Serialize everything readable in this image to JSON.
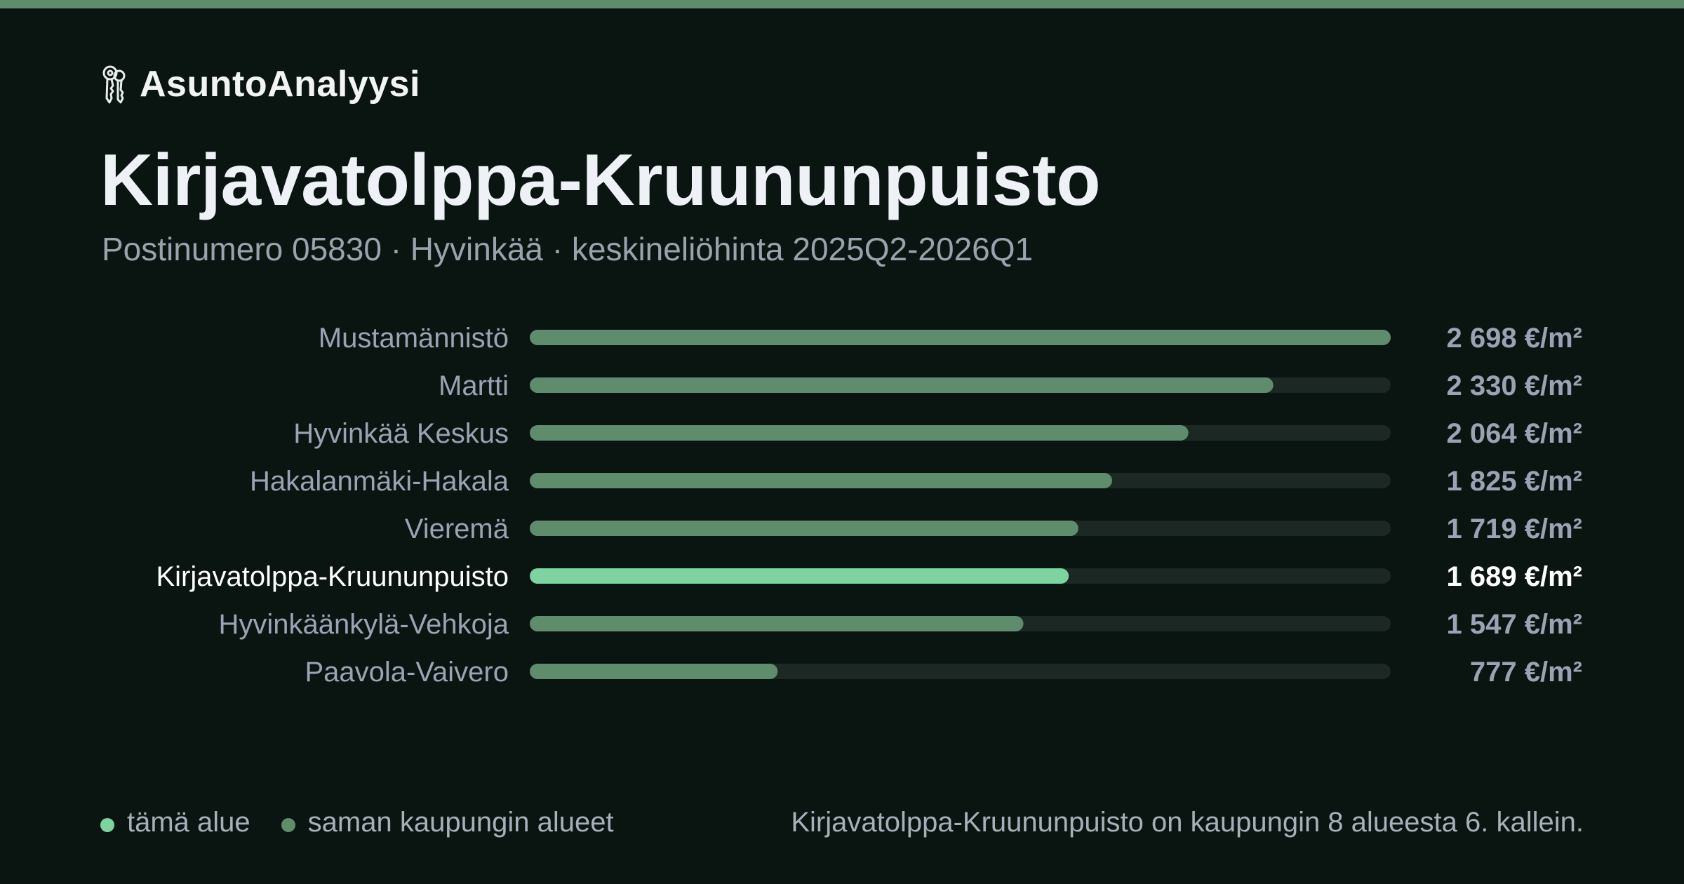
{
  "brand": {
    "name": "AsuntoAnalyysi",
    "icon": "keys-icon"
  },
  "header": {
    "title": "Kirjavatolppa-Kruununpuisto",
    "subtitle": "Postinumero 05830 · Hyvinkää · keskineliöhinta 2025Q2-2026Q1"
  },
  "colors": {
    "accent_bar": "#5e8c6c",
    "highlight": "#7ed4a0",
    "bar_default": "#5e8c6c",
    "track": "#1b2824",
    "label_default": "#9aa3b3",
    "label_highlight": "#ffffff"
  },
  "chart_data": {
    "type": "bar",
    "orientation": "horizontal",
    "unit": "€/m²",
    "categories": [
      "Mustamännistö",
      "Martti",
      "Hyvinkää Keskus",
      "Hakalanmäki-Hakala",
      "Vieremä",
      "Kirjavatolppa-Kruununpuisto",
      "Hyvinkäänkylä-Vehkoja",
      "Paavola-Vaivero"
    ],
    "values": [
      2698,
      2330,
      2064,
      1825,
      1719,
      1689,
      1547,
      777
    ],
    "value_labels": [
      "2 698 €/m²",
      "2 330 €/m²",
      "2 064 €/m²",
      "1 825 €/m²",
      "1 719 €/m²",
      "1 689 €/m²",
      "1 547 €/m²",
      "777 €/m²"
    ],
    "highlight_index": 5,
    "xlim": [
      0,
      2698
    ],
    "grid": false
  },
  "legend": {
    "this_area": "tämä alue",
    "same_city": "saman kaupungin alueet"
  },
  "summary": "Kirjavatolppa-Kruununpuisto on kaupungin 8 alueesta 6. kallein."
}
